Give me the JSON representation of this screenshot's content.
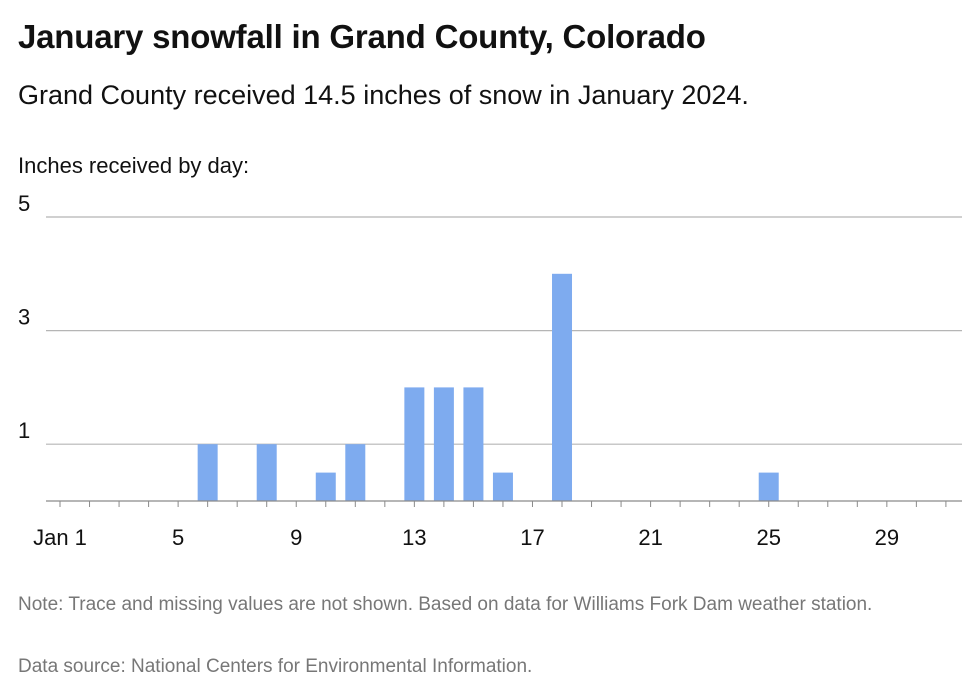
{
  "chart_data": {
    "type": "bar",
    "title": "January snowfall in Grand County, Colorado",
    "subtitle": "Grand County received 14.5 inches of snow in January 2024.",
    "ylabel": "Inches received by day:",
    "x": [
      6,
      8,
      10,
      11,
      13,
      14,
      15,
      16,
      18,
      25
    ],
    "values": [
      1,
      1,
      0.5,
      1,
      2,
      2,
      2,
      0.5,
      4,
      0.5
    ],
    "xlim": [
      1,
      31
    ],
    "ylim": [
      0,
      5
    ],
    "x_ticks": [
      1,
      5,
      9,
      13,
      17,
      21,
      25,
      29
    ],
    "x_tick_labels": [
      "Jan 1",
      "5",
      "9",
      "13",
      "17",
      "21",
      "25",
      "29"
    ],
    "y_ticks": [
      1,
      3,
      5
    ],
    "y_tick_labels": [
      "1",
      "3",
      "5"
    ],
    "grid": true,
    "bar_color": "#7eabef",
    "note": "Note: Trace and missing values are not shown. Based on data for Williams Fork Dam weather station.",
    "source": "Data source: National Centers for Environmental Information."
  }
}
